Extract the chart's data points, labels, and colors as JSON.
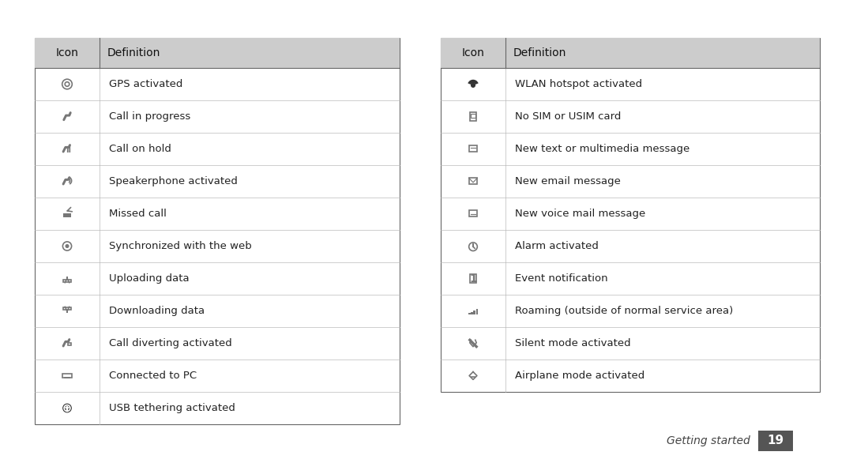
{
  "bg_color": "#ffffff",
  "table_border_color": "#666666",
  "header_bg": "#cccccc",
  "header_text_color": "#111111",
  "row_text_color": "#222222",
  "divider_color": "#bbbbbb",
  "header_font_size": 10,
  "row_font_size": 9.5,
  "footer_text": "Getting started",
  "footer_number": "19",
  "footer_box_color": "#555555",
  "footer_box_text_color": "#ffffff",
  "left_table": {
    "rows": [
      {
        "text": "GPS activated"
      },
      {
        "text": "Call in progress"
      },
      {
        "text": "Call on hold"
      },
      {
        "text": "Speakerphone activated"
      },
      {
        "text": "Missed call"
      },
      {
        "text": "Synchronized with the web"
      },
      {
        "text": "Uploading data"
      },
      {
        "text": "Downloading data"
      },
      {
        "text": "Call diverting activated"
      },
      {
        "text": "Connected to PC"
      },
      {
        "text": "USB tethering activated"
      }
    ]
  },
  "right_table": {
    "rows": [
      {
        "text": "WLAN hotspot activated"
      },
      {
        "text": "No SIM or USIM card"
      },
      {
        "text": "New text or multimedia message"
      },
      {
        "text": "New email message"
      },
      {
        "text": "New voice mail message"
      },
      {
        "text": "Alarm activated"
      },
      {
        "text": "Event notification"
      },
      {
        "text": "Roaming (outside of normal service area)"
      },
      {
        "text": "Silent mode activated"
      },
      {
        "text": "Airplane mode activated"
      }
    ]
  }
}
